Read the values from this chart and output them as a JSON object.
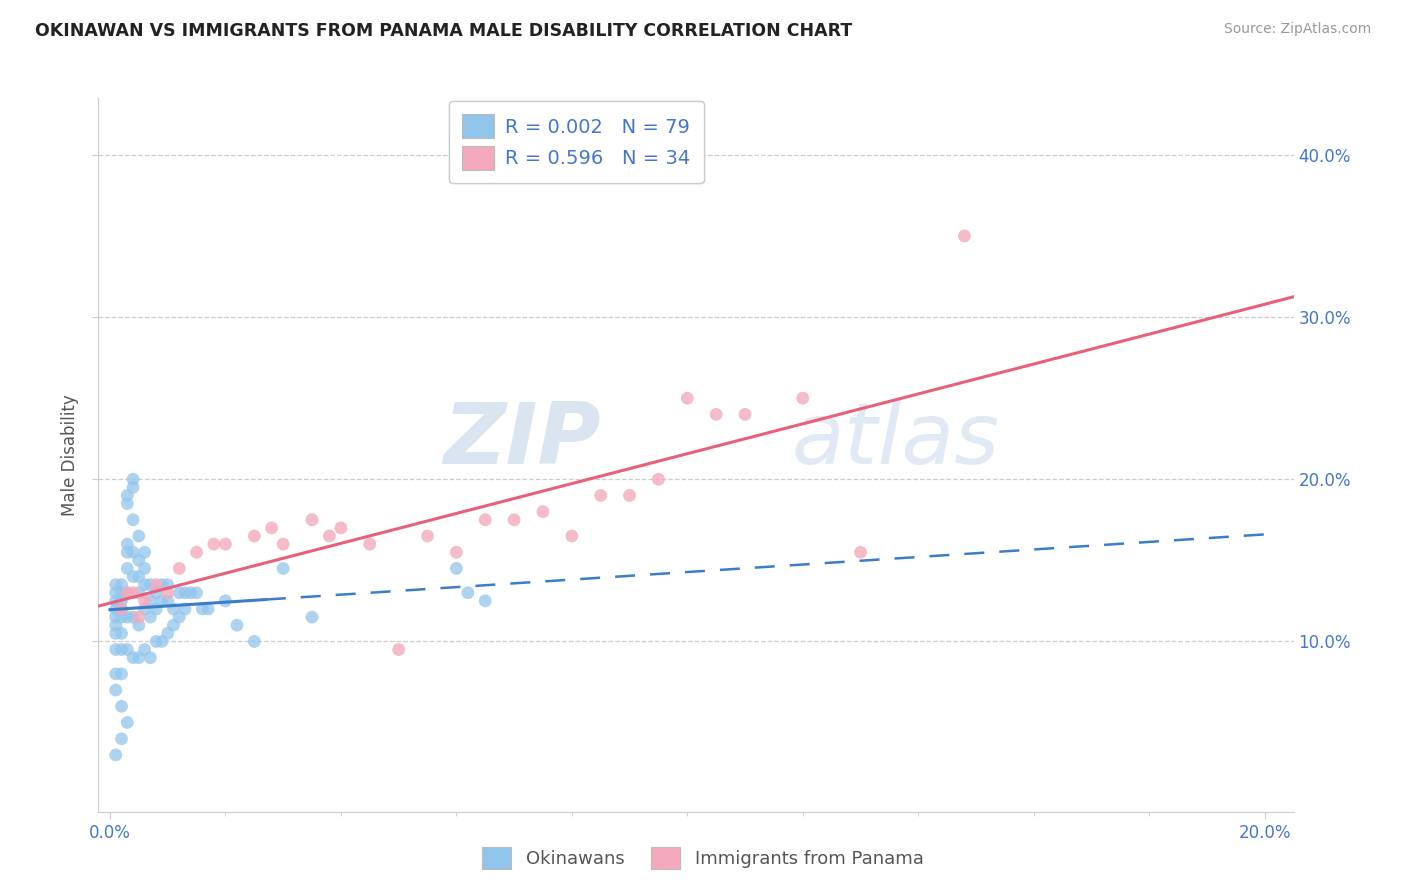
{
  "title": "OKINAWAN VS IMMIGRANTS FROM PANAMA MALE DISABILITY CORRELATION CHART",
  "source": "Source: ZipAtlas.com",
  "ylabel": "Male Disability",
  "xlim": [
    -0.002,
    0.205
  ],
  "ylim": [
    -0.005,
    0.435
  ],
  "xticks": [
    0.0,
    0.2
  ],
  "yticks": [
    0.1,
    0.2,
    0.3,
    0.4
  ],
  "blue_color": "#92C5EC",
  "pink_color": "#F4AABC",
  "blue_line_color": "#3B7DC8",
  "pink_line_color": "#E8607A",
  "title_color": "#222222",
  "source_color": "#999999",
  "tick_color": "#4477CC",
  "label_color": "#555555",
  "grid_color": "#CCCCCC",
  "legend_labels": [
    "Okinawans",
    "Immigrants from Panama"
  ],
  "R_ok": "0.002",
  "N_ok": "79",
  "R_pan": "0.596",
  "N_pan": "34",
  "watermark_zip": "ZIP",
  "watermark_atlas": "atlas",
  "ok_x": [
    0.001,
    0.001,
    0.001,
    0.001,
    0.001,
    0.001,
    0.001,
    0.001,
    0.001,
    0.001,
    0.002,
    0.002,
    0.002,
    0.002,
    0.002,
    0.002,
    0.002,
    0.002,
    0.002,
    0.003,
    0.003,
    0.003,
    0.003,
    0.003,
    0.003,
    0.003,
    0.003,
    0.004,
    0.004,
    0.004,
    0.004,
    0.004,
    0.004,
    0.004,
    0.005,
    0.005,
    0.005,
    0.005,
    0.005,
    0.005,
    0.006,
    0.006,
    0.006,
    0.006,
    0.006,
    0.007,
    0.007,
    0.007,
    0.007,
    0.008,
    0.008,
    0.008,
    0.009,
    0.009,
    0.009,
    0.01,
    0.01,
    0.01,
    0.011,
    0.011,
    0.012,
    0.012,
    0.013,
    0.013,
    0.014,
    0.015,
    0.016,
    0.017,
    0.02,
    0.022,
    0.025,
    0.03,
    0.035,
    0.06,
    0.062,
    0.065,
    0.001,
    0.002,
    0.003
  ],
  "ok_y": [
    0.135,
    0.13,
    0.125,
    0.12,
    0.115,
    0.11,
    0.105,
    0.095,
    0.08,
    0.07,
    0.135,
    0.13,
    0.125,
    0.12,
    0.115,
    0.105,
    0.095,
    0.08,
    0.06,
    0.19,
    0.185,
    0.16,
    0.155,
    0.145,
    0.13,
    0.115,
    0.095,
    0.2,
    0.195,
    0.175,
    0.155,
    0.14,
    0.115,
    0.09,
    0.165,
    0.15,
    0.14,
    0.13,
    0.11,
    0.09,
    0.155,
    0.145,
    0.135,
    0.12,
    0.095,
    0.135,
    0.125,
    0.115,
    0.09,
    0.13,
    0.12,
    0.1,
    0.135,
    0.125,
    0.1,
    0.135,
    0.125,
    0.105,
    0.12,
    0.11,
    0.13,
    0.115,
    0.13,
    0.12,
    0.13,
    0.13,
    0.12,
    0.12,
    0.125,
    0.11,
    0.1,
    0.145,
    0.115,
    0.145,
    0.13,
    0.125,
    0.03,
    0.04,
    0.05
  ],
  "pan_x": [
    0.002,
    0.004,
    0.006,
    0.008,
    0.01,
    0.012,
    0.015,
    0.018,
    0.02,
    0.025,
    0.028,
    0.03,
    0.035,
    0.038,
    0.04,
    0.045,
    0.05,
    0.055,
    0.06,
    0.065,
    0.07,
    0.075,
    0.08,
    0.085,
    0.09,
    0.095,
    0.1,
    0.105,
    0.11,
    0.12,
    0.13,
    0.148,
    0.003,
    0.005
  ],
  "pan_y": [
    0.12,
    0.13,
    0.125,
    0.135,
    0.13,
    0.145,
    0.155,
    0.16,
    0.16,
    0.165,
    0.17,
    0.16,
    0.175,
    0.165,
    0.17,
    0.16,
    0.095,
    0.165,
    0.155,
    0.175,
    0.175,
    0.18,
    0.165,
    0.19,
    0.19,
    0.2,
    0.25,
    0.24,
    0.24,
    0.25,
    0.155,
    0.35,
    0.13,
    0.115
  ]
}
